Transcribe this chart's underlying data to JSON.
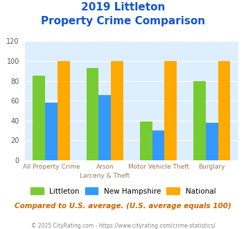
{
  "title_line1": "2019 Littleton",
  "title_line2": "Property Crime Comparison",
  "cat_labels_line1": [
    "All Property Crime",
    "Arson",
    "Motor Vehicle Theft",
    "Burglary"
  ],
  "cat_labels_line2": [
    "",
    "Larceny & Theft",
    "",
    ""
  ],
  "littleton": [
    85,
    93,
    39,
    80
  ],
  "new_hampshire": [
    58,
    66,
    30,
    38
  ],
  "national": [
    100,
    100,
    100,
    100
  ],
  "colors": {
    "littleton": "#77cc33",
    "new_hampshire": "#3399ff",
    "national": "#ffaa00"
  },
  "ylim": [
    0,
    120
  ],
  "yticks": [
    0,
    20,
    40,
    60,
    80,
    100,
    120
  ],
  "background_color": "#ddeeff",
  "title_color": "#1155cc",
  "label_color": "#997755",
  "footnote": "Compared to U.S. average. (U.S. average equals 100)",
  "copyright": "© 2025 CityRating.com - https://www.cityrating.com/crime-statistics/",
  "footnote_color": "#cc6600",
  "copyright_color": "#888888",
  "legend_labels": [
    "Littleton",
    "New Hampshire",
    "National"
  ]
}
